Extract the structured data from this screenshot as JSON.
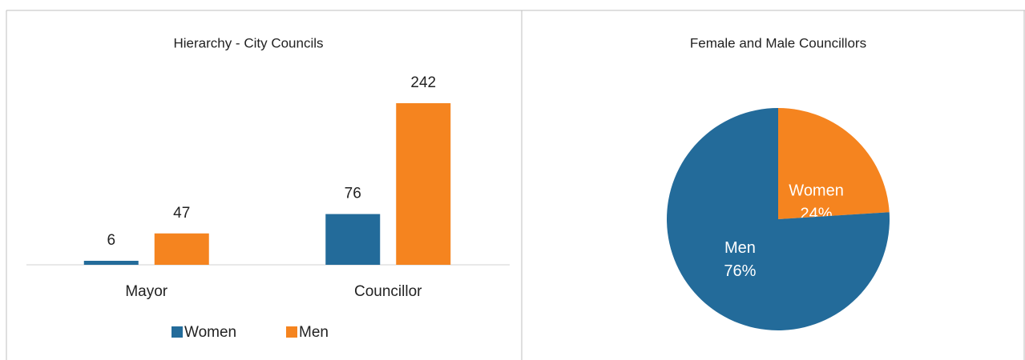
{
  "chart_data": [
    {
      "type": "bar",
      "title": "Hierarchy - City Councils",
      "categories": [
        "Mayor",
        "Councillor"
      ],
      "series": [
        {
          "name": "Women",
          "color": "#236b9a",
          "values": [
            6,
            76
          ]
        },
        {
          "name": "Men",
          "color": "#f5841f",
          "values": [
            47,
            242
          ]
        }
      ],
      "legend": "bottom"
    },
    {
      "type": "pie",
      "title": "Female and Male Councillors",
      "categories": [
        "Women",
        "Men"
      ],
      "values": [
        24,
        76
      ],
      "value_labels": [
        "24%",
        "76%"
      ],
      "colors": [
        "#f5841f",
        "#236b9a"
      ]
    }
  ]
}
